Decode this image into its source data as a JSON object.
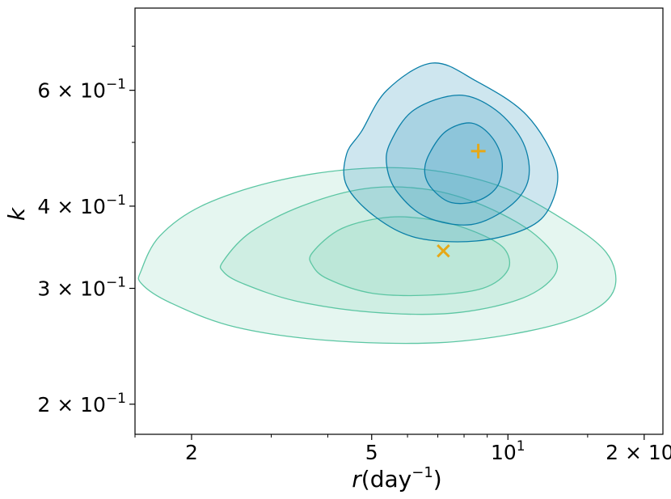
{
  "chart_data": {
    "type": "contour",
    "xlabel": {
      "base": "r",
      "unit": "(day",
      "exp": "−1",
      "close": ")"
    },
    "ylabel": "k",
    "x_scale": "log",
    "y_scale": "log",
    "xlim": [
      1.5,
      22
    ],
    "ylim": [
      0.18,
      0.8
    ],
    "grid": false,
    "x_ticks": [
      {
        "value": 2,
        "label": "2"
      },
      {
        "value": 5,
        "label": "5"
      },
      {
        "value": 10,
        "label": "10",
        "exp_label": "1"
      },
      {
        "value": 20,
        "label": "2 × 10",
        "exp_label": "1"
      }
    ],
    "x_minor_ticks": [
      1.5,
      3,
      4,
      6,
      7,
      8,
      9,
      15
    ],
    "y_ticks": [
      {
        "value": 0.2,
        "label": "2 × 10",
        "exp_label": "−1"
      },
      {
        "value": 0.3,
        "label": "3 × 10",
        "exp_label": "−1"
      },
      {
        "value": 0.4,
        "label": "4 × 10",
        "exp_label": "−1"
      },
      {
        "value": 0.6,
        "label": "6 × 10",
        "exp_label": "−1"
      }
    ],
    "y_minor_ticks": [
      0.5,
      0.7
    ],
    "series": [
      {
        "color": "#4dbf9a",
        "fill": "#5cc6a3",
        "fill_opacity": 0.16,
        "stroke": "#5cc6a3",
        "levels": [
          [
            [
              1.55,
              0.32
            ],
            [
              1.7,
              0.36
            ],
            [
              2.1,
              0.4
            ],
            [
              3,
              0.435
            ],
            [
              4.5,
              0.455
            ],
            [
              6.5,
              0.455
            ],
            [
              9.5,
              0.43
            ],
            [
              13,
              0.385
            ],
            [
              16.5,
              0.34
            ],
            [
              17.2,
              0.3
            ],
            [
              15,
              0.275
            ],
            [
              11,
              0.258
            ],
            [
              7,
              0.248
            ],
            [
              4,
              0.25
            ],
            [
              2.5,
              0.262
            ],
            [
              1.8,
              0.285
            ],
            [
              1.55,
              0.305
            ]
          ],
          [
            [
              2.35,
              0.33
            ],
            [
              2.7,
              0.365
            ],
            [
              3.5,
              0.4
            ],
            [
              4.8,
              0.425
            ],
            [
              6.5,
              0.425
            ],
            [
              8.5,
              0.405
            ],
            [
              11,
              0.37
            ],
            [
              12.7,
              0.335
            ],
            [
              12.5,
              0.31
            ],
            [
              10.5,
              0.288
            ],
            [
              7.5,
              0.275
            ],
            [
              5,
              0.276
            ],
            [
              3.4,
              0.287
            ],
            [
              2.6,
              0.305
            ],
            [
              2.35,
              0.318
            ]
          ],
          [
            [
              3.7,
              0.34
            ],
            [
              4.3,
              0.37
            ],
            [
              5.5,
              0.385
            ],
            [
              7,
              0.38
            ],
            [
              8.5,
              0.365
            ],
            [
              9.8,
              0.345
            ],
            [
              10,
              0.32
            ],
            [
              8.8,
              0.3
            ],
            [
              6.7,
              0.293
            ],
            [
              5,
              0.295
            ],
            [
              4,
              0.31
            ],
            [
              3.7,
              0.325
            ]
          ]
        ]
      },
      {
        "color": "#1c7ca0",
        "fill": "#3a9cc0",
        "fill_opacity": 0.25,
        "stroke": "#0a7fa8",
        "levels": [
          [
            [
              4.75,
              0.52
            ],
            [
              5.4,
              0.6
            ],
            [
              6.8,
              0.66
            ],
            [
              8.5,
              0.62
            ],
            [
              11,
              0.55
            ],
            [
              12.8,
              0.46
            ],
            [
              12.4,
              0.4
            ],
            [
              11,
              0.37
            ],
            [
              8.5,
              0.354
            ],
            [
              6.3,
              0.358
            ],
            [
              5.1,
              0.385
            ],
            [
              4.4,
              0.43
            ],
            [
              4.4,
              0.48
            ]
          ],
          [
            [
              5.5,
              0.5
            ],
            [
              6.2,
              0.56
            ],
            [
              7.8,
              0.59
            ],
            [
              9.4,
              0.56
            ],
            [
              10.8,
              0.5
            ],
            [
              11.1,
              0.44
            ],
            [
              10.1,
              0.4
            ],
            [
              8.3,
              0.375
            ],
            [
              6.6,
              0.385
            ],
            [
              5.7,
              0.42
            ],
            [
              5.4,
              0.46
            ]
          ],
          [
            [
              6.7,
              0.48
            ],
            [
              7.3,
              0.52
            ],
            [
              8.3,
              0.535
            ],
            [
              9.2,
              0.51
            ],
            [
              9.7,
              0.47
            ],
            [
              9.5,
              0.43
            ],
            [
              8.6,
              0.408
            ],
            [
              7.5,
              0.405
            ],
            [
              6.8,
              0.425
            ],
            [
              6.55,
              0.45
            ]
          ]
        ]
      }
    ],
    "markers": [
      {
        "symbol": "plus",
        "x": 8.6,
        "y": 0.485,
        "color": "#e6a817"
      },
      {
        "symbol": "cross",
        "x": 7.2,
        "y": 0.342,
        "color": "#e6a817"
      }
    ]
  }
}
